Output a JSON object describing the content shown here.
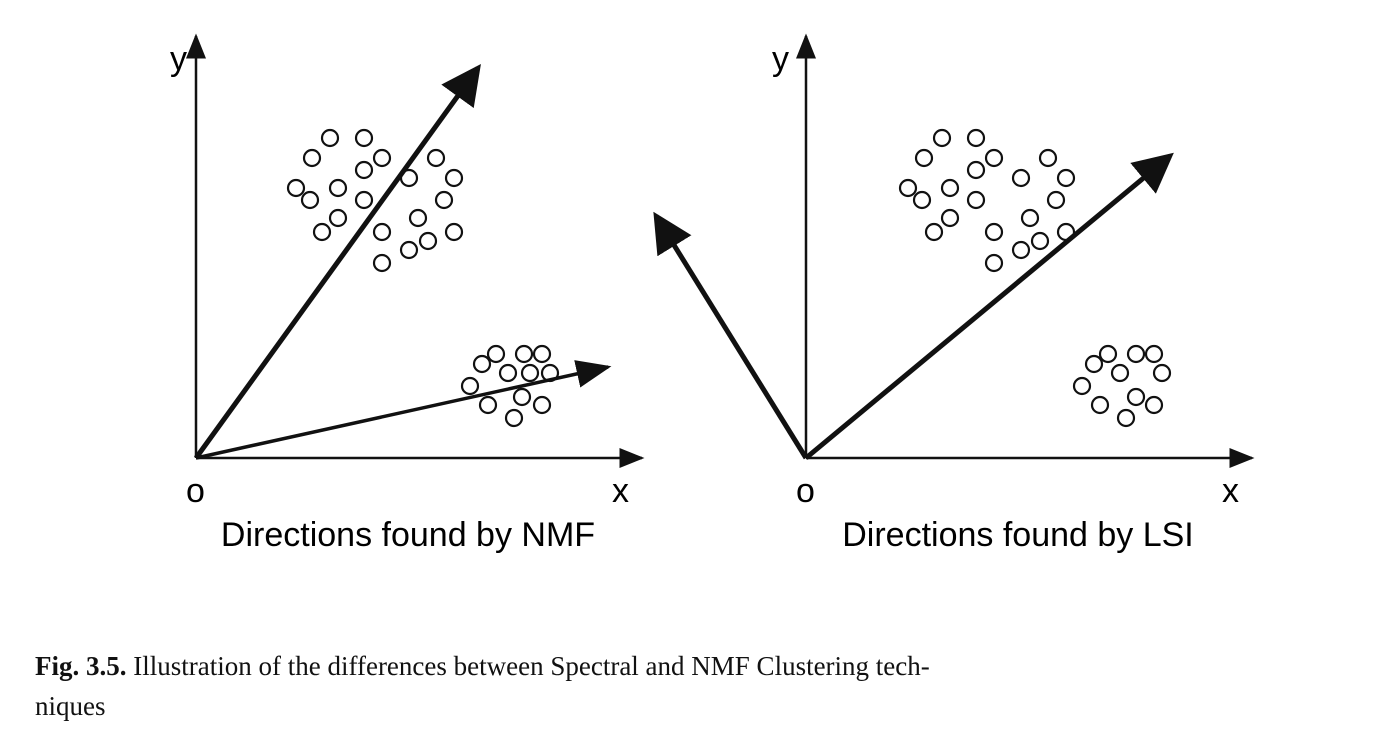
{
  "panels": [
    {
      "id": "nmf",
      "axis_y_label": "y",
      "axis_x_label": "x",
      "origin_label": "o",
      "title": "Directions found by NMF"
    },
    {
      "id": "lsi",
      "axis_y_label": "y",
      "axis_x_label": "x",
      "origin_label": "o",
      "title": "Directions found by LSI"
    }
  ],
  "caption": {
    "label": "Fig. 3.5.",
    "text_line1": " Illustration of the differences between Spectral and NMF Clustering tech-",
    "text_line2": "niques"
  }
}
